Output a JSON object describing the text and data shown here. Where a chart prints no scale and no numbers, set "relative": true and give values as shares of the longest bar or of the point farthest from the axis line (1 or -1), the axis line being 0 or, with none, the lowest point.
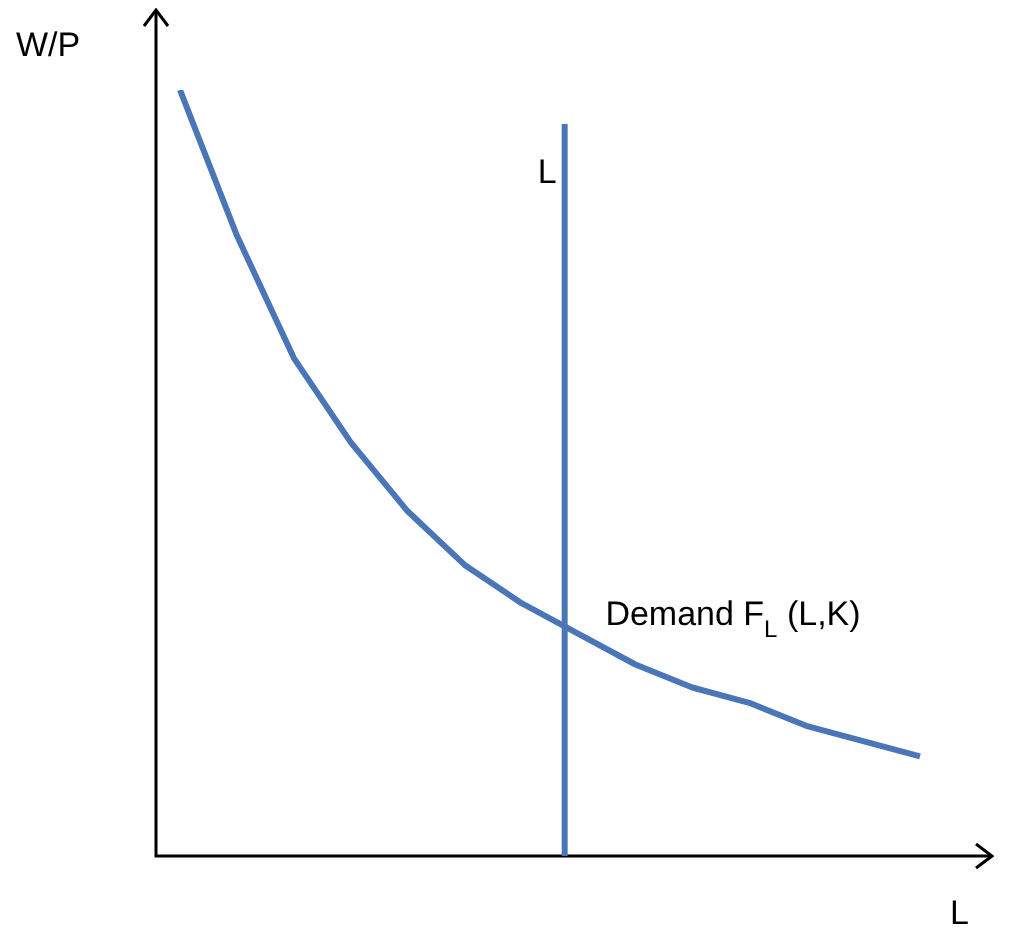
{
  "chart_data": {
    "type": "line",
    "relative": true,
    "ylabel": "W/P",
    "xlabel": "L",
    "marker": "none",
    "line_style": "solid",
    "categories": [
      null,
      null,
      null,
      null,
      null,
      null,
      null,
      null,
      null,
      null,
      null,
      null,
      null,
      null
    ],
    "series": [
      {
        "name": "Demand F$_{L}$ (L,K)",
        "color": "#4a76b8",
        "values": [
          1.0,
          0.81,
          0.65,
          0.54,
          0.45,
          0.38,
          0.33,
          0.29,
          0.25,
          0.22,
          0.2,
          0.17,
          0.15,
          0.13
        ]
      }
    ],
    "annotations": [
      "L"
    ]
  }
}
